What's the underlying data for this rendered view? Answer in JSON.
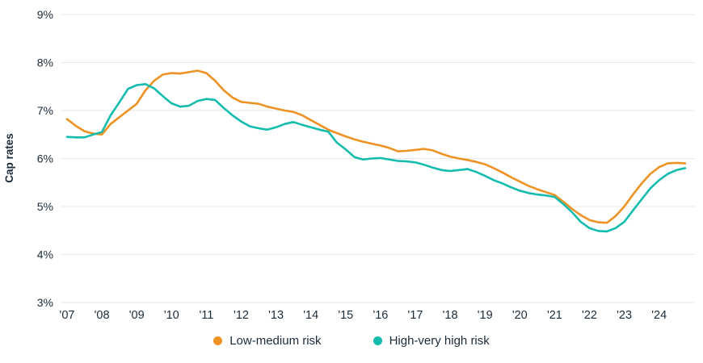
{
  "chart_data": {
    "type": "line",
    "title": "",
    "xlabel": "",
    "ylabel": "Cap rates",
    "ylim": [
      3,
      9
    ],
    "grid": "horizontal-only",
    "legend_position": "bottom-center",
    "y_tick_values": [
      9,
      8,
      7,
      6,
      5,
      4,
      3
    ],
    "y_tick_labels": [
      "9%",
      "8%",
      "7%",
      "6%",
      "5%",
      "4%",
      "3%"
    ],
    "x_tick_years": [
      2007,
      2008,
      2009,
      2010,
      2011,
      2012,
      2013,
      2014,
      2015,
      2016,
      2017,
      2018,
      2019,
      2020,
      2021,
      2022,
      2023,
      2024
    ],
    "x_tick_labels": [
      "'07",
      "'08",
      "'09",
      "'10",
      "'11",
      "'12",
      "'13",
      "'14",
      "'15",
      "'16",
      "'17",
      "'18",
      "'19",
      "'20",
      "'21",
      "'22",
      "'23",
      "'24"
    ],
    "x": [
      2007.0,
      2007.25,
      2007.5,
      2007.75,
      2008.0,
      2008.25,
      2008.5,
      2008.75,
      2009.0,
      2009.25,
      2009.5,
      2009.75,
      2010.0,
      2010.25,
      2010.5,
      2010.75,
      2011.0,
      2011.25,
      2011.5,
      2011.75,
      2012.0,
      2012.25,
      2012.5,
      2012.75,
      2013.0,
      2013.25,
      2013.5,
      2013.75,
      2014.0,
      2014.25,
      2014.5,
      2014.75,
      2015.0,
      2015.25,
      2015.5,
      2015.75,
      2016.0,
      2016.25,
      2016.5,
      2016.75,
      2017.0,
      2017.25,
      2017.5,
      2017.75,
      2018.0,
      2018.25,
      2018.5,
      2018.75,
      2019.0,
      2019.25,
      2019.5,
      2019.75,
      2020.0,
      2020.25,
      2020.5,
      2020.75,
      2021.0,
      2021.25,
      2021.5,
      2021.75,
      2022.0,
      2022.25,
      2022.5,
      2022.75,
      2023.0,
      2023.25,
      2023.5,
      2023.75,
      2024.0,
      2024.25,
      2024.5,
      2024.75
    ],
    "series": [
      {
        "name": "Low-medium risk",
        "color": "#EE9223",
        "values": [
          6.82,
          6.68,
          6.57,
          6.52,
          6.5,
          6.72,
          6.86,
          7.0,
          7.14,
          7.42,
          7.62,
          7.75,
          7.78,
          7.77,
          7.8,
          7.83,
          7.78,
          7.62,
          7.42,
          7.27,
          7.18,
          7.16,
          7.14,
          7.08,
          7.04,
          7.0,
          6.97,
          6.9,
          6.8,
          6.7,
          6.6,
          6.53,
          6.46,
          6.4,
          6.35,
          6.31,
          6.27,
          6.22,
          6.15,
          6.16,
          6.18,
          6.2,
          6.17,
          6.1,
          6.04,
          6.0,
          5.97,
          5.93,
          5.88,
          5.8,
          5.71,
          5.61,
          5.52,
          5.43,
          5.36,
          5.3,
          5.24,
          5.1,
          4.95,
          4.82,
          4.72,
          4.67,
          4.66,
          4.8,
          5.0,
          5.25,
          5.48,
          5.68,
          5.82,
          5.9,
          5.91,
          5.9
        ]
      },
      {
        "name": "High-very high risk",
        "color": "#14BCB0",
        "values": [
          6.45,
          6.44,
          6.44,
          6.5,
          6.55,
          6.9,
          7.17,
          7.45,
          7.53,
          7.55,
          7.46,
          7.3,
          7.15,
          7.08,
          7.1,
          7.2,
          7.24,
          7.22,
          7.05,
          6.9,
          6.77,
          6.67,
          6.63,
          6.6,
          6.65,
          6.72,
          6.76,
          6.7,
          6.65,
          6.6,
          6.56,
          6.33,
          6.19,
          6.03,
          5.98,
          6.0,
          6.01,
          5.98,
          5.95,
          5.94,
          5.92,
          5.87,
          5.81,
          5.76,
          5.74,
          5.76,
          5.78,
          5.72,
          5.64,
          5.55,
          5.48,
          5.4,
          5.33,
          5.28,
          5.25,
          5.23,
          5.2,
          5.05,
          4.88,
          4.68,
          4.55,
          4.49,
          4.48,
          4.55,
          4.68,
          4.92,
          5.15,
          5.38,
          5.55,
          5.68,
          5.76,
          5.8
        ]
      }
    ]
  },
  "colors": {
    "text": "#1b2b3a",
    "grid": "#e7e7e7",
    "background": "#ffffff"
  }
}
